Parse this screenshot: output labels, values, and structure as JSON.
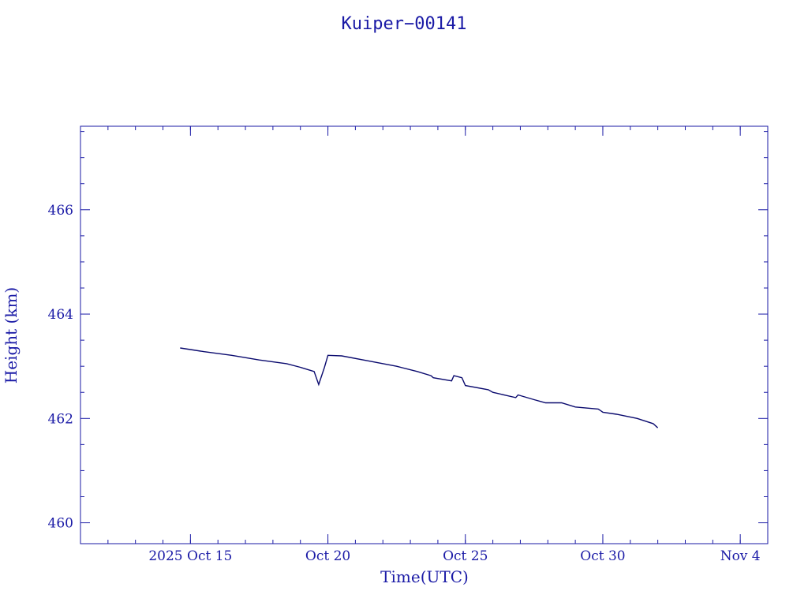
{
  "chart_data": {
    "type": "line",
    "title": "Kuiper−00141",
    "xlabel": "Time(UTC)",
    "ylabel": "Height (km)",
    "xlim": [
      "2025-10-11",
      "2025-11-05"
    ],
    "ylim": [
      459.6,
      467.6
    ],
    "x_ticks": [
      {
        "x": "2025-10-15",
        "label": "2025 Oct 15"
      },
      {
        "x": "2025-10-20",
        "label": "Oct 20"
      },
      {
        "x": "2025-10-25",
        "label": "Oct 25"
      },
      {
        "x": "2025-10-30",
        "label": "Oct 30"
      },
      {
        "x": "2025-11-04",
        "label": "Nov  4"
      }
    ],
    "y_ticks": [
      {
        "y": 460,
        "label": "460"
      },
      {
        "y": 462,
        "label": "462"
      },
      {
        "y": 464,
        "label": "464"
      },
      {
        "y": 466,
        "label": "466"
      }
    ],
    "grid": false,
    "series": [
      {
        "x": [
          "2025-10-14T15:00",
          "2025-10-15T00:00",
          "2025-10-15T12:00",
          "2025-10-16T12:00",
          "2025-10-17T12:00",
          "2025-10-18T12:00",
          "2025-10-19T00:00",
          "2025-10-19T12:00",
          "2025-10-19T16:00",
          "2025-10-19T21:00",
          "2025-10-20T00:00",
          "2025-10-20T12:00",
          "2025-10-21T12:00",
          "2025-10-22T12:00",
          "2025-10-23T06:00",
          "2025-10-23T18:00",
          "2025-10-23T20:00",
          "2025-10-24T12:00",
          "2025-10-24T14:00",
          "2025-10-24T21:00",
          "2025-10-25T00:00",
          "2025-10-25T20:00",
          "2025-10-26T00:00",
          "2025-10-26T20:00",
          "2025-10-26T22:00",
          "2025-10-27T12:00",
          "2025-10-27T22:00",
          "2025-10-28T12:00",
          "2025-10-29T00:00",
          "2025-10-29T20:00",
          "2025-10-30T00:00",
          "2025-10-30T12:00",
          "2025-10-31T06:00",
          "2025-10-31T20:00",
          "2025-11-01T00:00"
        ],
        "y": [
          463.35,
          463.32,
          463.28,
          463.21,
          463.12,
          463.05,
          462.98,
          462.9,
          462.65,
          462.98,
          463.21,
          463.2,
          463.1,
          463.0,
          462.9,
          462.82,
          462.78,
          462.72,
          462.82,
          462.78,
          462.63,
          462.55,
          462.5,
          462.4,
          462.45,
          462.36,
          462.3,
          462.3,
          462.22,
          462.18,
          462.12,
          462.08,
          462.0,
          461.9,
          461.82
        ]
      }
    ]
  }
}
